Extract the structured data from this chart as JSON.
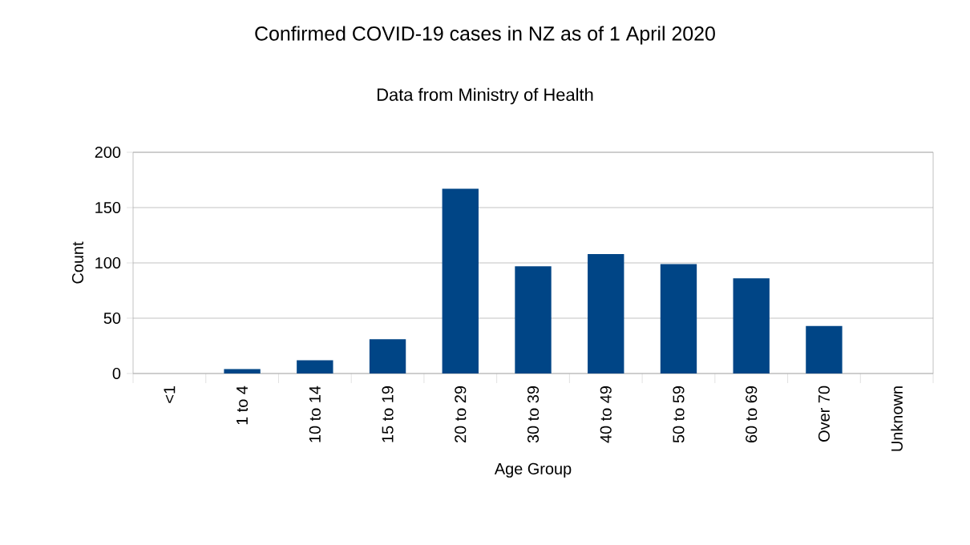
{
  "chart_data": {
    "type": "bar",
    "title": "Confirmed COVID-19 cases in NZ as of 1 April 2020",
    "subtitle": "Data from Ministry of Health",
    "xlabel": "Age Group",
    "ylabel": "Count",
    "categories": [
      "<1",
      "1 to 4",
      "10 to 14",
      "15 to 19",
      "20 to 29",
      "30 to 39",
      "40 to 49",
      "50 to 59",
      "60 to 69",
      "Over 70",
      "Unknown"
    ],
    "values": [
      0,
      4,
      12,
      31,
      167,
      97,
      108,
      99,
      86,
      43,
      0
    ],
    "color": "#004586",
    "ylim": [
      0,
      200
    ],
    "yticks": [
      0,
      50,
      100,
      150,
      200
    ],
    "grid": "y"
  }
}
